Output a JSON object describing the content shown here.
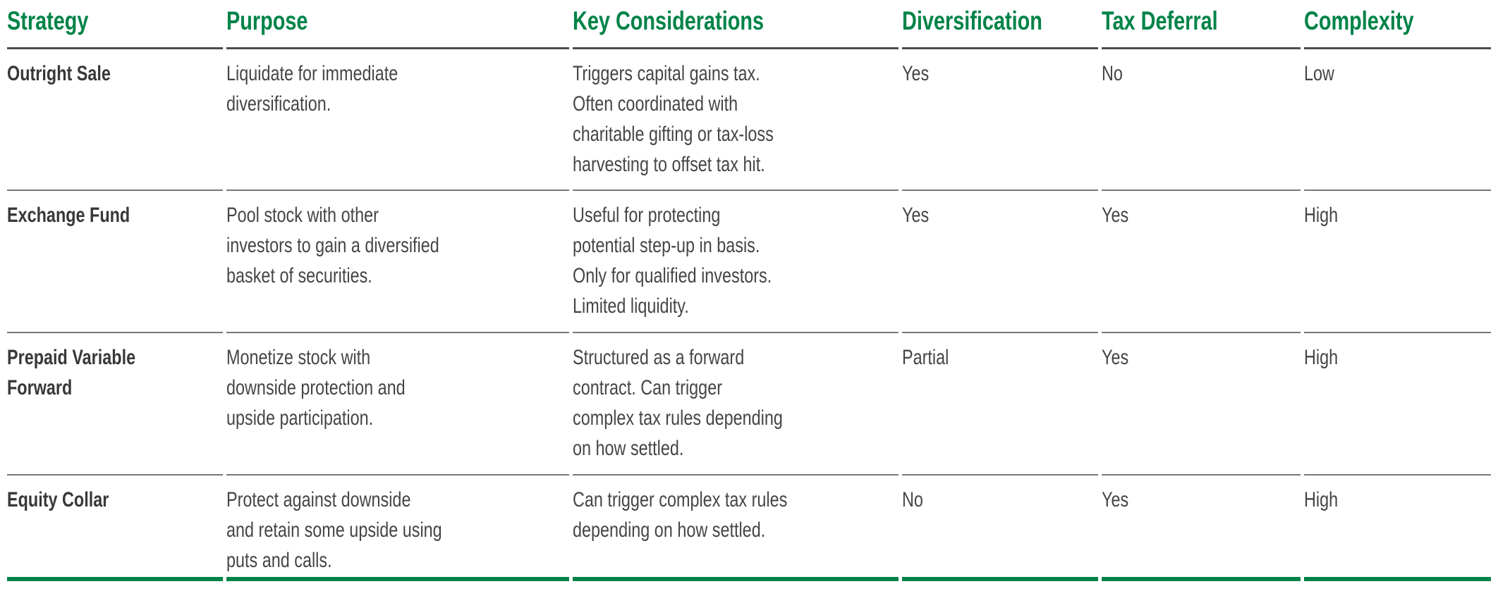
{
  "accent_color": "#008348",
  "rule_color": "#777777",
  "header_rule_color": "#4c4c4c",
  "table": {
    "columns": [
      {
        "key": "strategy",
        "label": "Strategy"
      },
      {
        "key": "purpose",
        "label": "Purpose"
      },
      {
        "key": "key_considerations",
        "label": "Key Considerations"
      },
      {
        "key": "diversification",
        "label": "Diversification"
      },
      {
        "key": "tax_deferral",
        "label": "Tax Deferral"
      },
      {
        "key": "complexity",
        "label": "Complexity"
      }
    ],
    "rows": [
      {
        "strategy": "Outright Sale",
        "purpose": "Liquidate for immediate\ndiversification.",
        "key_considerations": "Triggers capital gains tax.\nOften coordinated with\ncharitable gifting or tax-loss\nharvesting to offset tax hit.",
        "diversification": "Yes",
        "tax_deferral": "No",
        "complexity": "Low"
      },
      {
        "strategy": "Exchange Fund",
        "purpose": "Pool stock with other\ninvestors to gain a diversified\nbasket of securities.",
        "key_considerations": "Useful for protecting\npotential step-up in basis.\nOnly for qualified investors.\nLimited liquidity.",
        "diversification": "Yes",
        "tax_deferral": "Yes",
        "complexity": "High"
      },
      {
        "strategy": "Prepaid Variable\nForward",
        "purpose": "Monetize stock with\ndownside protection and\nupside participation.",
        "key_considerations": "Structured as a forward\ncontract. Can trigger\ncomplex tax rules depending\non how settled.",
        "diversification": "Partial",
        "tax_deferral": "Yes",
        "complexity": "High"
      },
      {
        "strategy": "Equity Collar",
        "purpose": "Protect against downside\nand retain some upside using\nputs and calls.",
        "key_considerations": "Can trigger complex tax rules\ndepending on how settled.",
        "diversification": "No",
        "tax_deferral": "Yes",
        "complexity": "High"
      }
    ]
  }
}
